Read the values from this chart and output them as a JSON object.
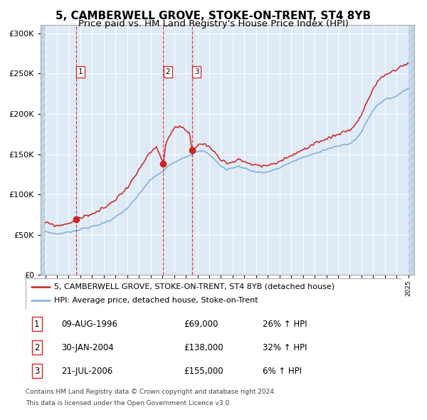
{
  "title": "5, CAMBERWELL GROVE, STOKE-ON-TRENT, ST4 8YB",
  "subtitle": "Price paid vs. HM Land Registry's House Price Index (HPI)",
  "legend_line1": "5, CAMBERWELL GROVE, STOKE-ON-TRENT, ST4 8YB (detached house)",
  "legend_line2": "HPI: Average price, detached house, Stoke-on-Trent",
  "footer1": "Contains HM Land Registry data © Crown copyright and database right 2024.",
  "footer2": "This data is licensed under the Open Government Licence v3.0.",
  "transactions": [
    {
      "num": "1",
      "date": "09-AUG-1996",
      "price": "£69,000",
      "hpi_change": "26% ↑ HPI",
      "year": 1996.61
    },
    {
      "num": "2",
      "date": "30-JAN-2004",
      "price": "£138,000",
      "hpi_change": "32% ↑ HPI",
      "year": 2004.08
    },
    {
      "num": "3",
      "date": "21-JUL-2006",
      "price": "£155,000",
      "hpi_change": "6% ↑ HPI",
      "year": 2006.54
    }
  ],
  "ylim": [
    0,
    310000
  ],
  "yticks": [
    0,
    50000,
    100000,
    150000,
    200000,
    250000,
    300000
  ],
  "ytick_labels": [
    "£0",
    "£50K",
    "£100K",
    "£150K",
    "£200K",
    "£250K",
    "£300K"
  ],
  "xlim_start": 1993.6,
  "xlim_end": 2025.5,
  "data_start": 1994.0,
  "data_end": 2025.0,
  "hpi_color": "#7aadda",
  "price_color": "#cc2222",
  "bg_color": "#deeaf5",
  "hatch_facecolor": "#c5d8eb",
  "grid_color": "#ffffff",
  "vline_color": "#dd2222",
  "title_fontsize": 11,
  "subtitle_fontsize": 9.5,
  "axis_fontsize": 8,
  "legend_fontsize": 8,
  "table_fontsize": 8.5,
  "footer_fontsize": 6.5
}
